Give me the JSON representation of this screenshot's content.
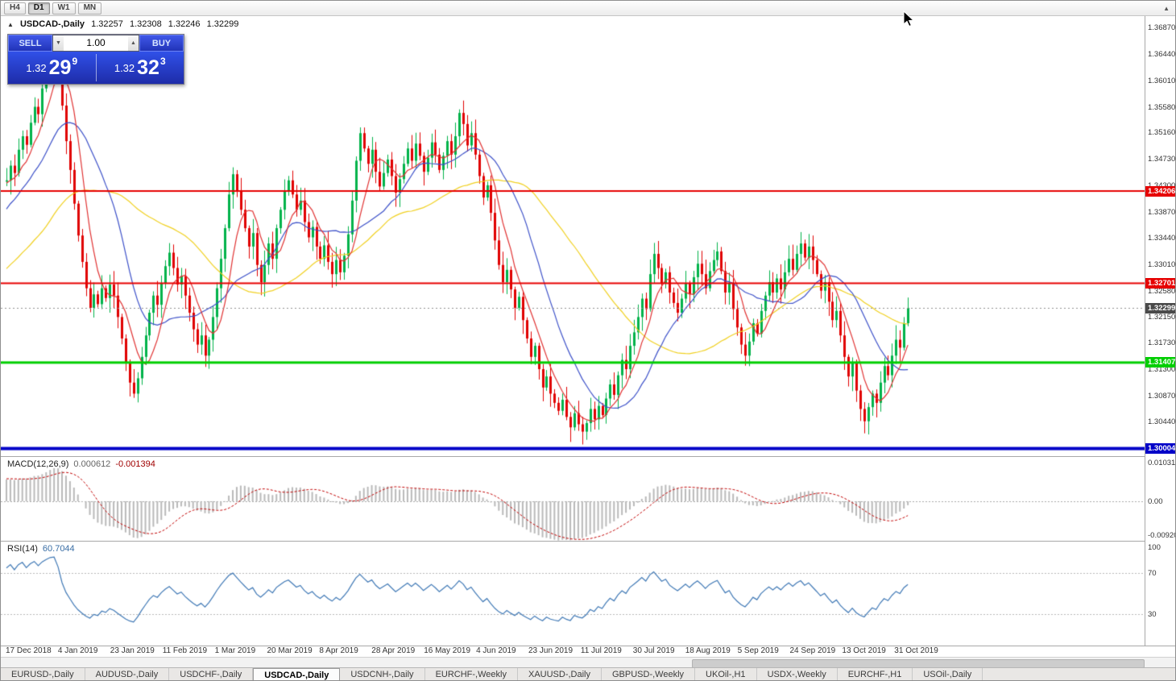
{
  "window": {
    "timeframe_buttons": [
      "H4",
      "D1",
      "W1",
      "MN"
    ],
    "active_timeframe": "D1"
  },
  "icons": {
    "collapse_panel": "▲",
    "spinner_up": "▲",
    "spinner_down": "▼",
    "corner_arrow": "▲"
  },
  "chart": {
    "title_symbol": "USDCAD-,Daily",
    "ohlc": {
      "open": "1.32257",
      "high": "1.32308",
      "low": "1.32246",
      "close": "1.32299"
    },
    "price_min": 1.2988,
    "price_max": 1.3706,
    "price_ticks": [
      "1.36870",
      "1.36440",
      "1.36010",
      "1.35580",
      "1.35160",
      "1.34730",
      "1.34300",
      "1.33870",
      "1.33440",
      "1.33010",
      "1.32580",
      "1.32150",
      "1.31730",
      "1.31300",
      "1.30870",
      "1.30440"
    ],
    "levels": [
      {
        "price": 1.34206,
        "label": "1.34206",
        "color": "#e60000",
        "width": 2
      },
      {
        "price": 1.32701,
        "label": "1.32701",
        "color": "#e60000",
        "width": 2
      },
      {
        "price": 1.31407,
        "label": "1.31407",
        "color": "#00ce00",
        "width": 3
      },
      {
        "price": 1.30004,
        "label": "1.30004",
        "color": "#0000c8",
        "width": 4
      }
    ],
    "bid_line": {
      "price": 1.32299,
      "label": "1.32299",
      "badge": "#4a4a4a"
    },
    "date_labels": [
      "17 Dec 2018",
      "4 Jan 2019",
      "23 Jan 2019",
      "11 Feb 2019",
      "1 Mar 2019",
      "20 Mar 2019",
      "8 Apr 2019",
      "28 Apr 2019",
      "16 May 2019",
      "4 Jun 2019",
      "23 Jun 2019",
      "11 Jul 2019",
      "30 Jul 2019",
      "18 Aug 2019",
      "5 Sep 2019",
      "24 Sep 2019",
      "13 Oct 2019",
      "31 Oct 2019"
    ]
  },
  "one_click": {
    "sell_label": "SELL",
    "buy_label": "BUY",
    "volume": "1.00",
    "sell_price": {
      "base": "1.32",
      "big": "29",
      "sup": "9"
    },
    "buy_price": {
      "base": "1.32",
      "big": "32",
      "sup": "3"
    }
  },
  "macd": {
    "name": "MACD(12,26,9)",
    "value_main": "0.000612",
    "value_signal": "-0.001394",
    "scale_max_label": "0.010311",
    "scale_zero_label": "0.00",
    "scale_min_label": "-0.009203",
    "range_max": 0.010311,
    "range_min": -0.009203
  },
  "rsi": {
    "name": "RSI(14)",
    "value": "60.7044",
    "levels": [
      "100",
      "70",
      "30"
    ],
    "level_values": [
      100,
      70,
      30
    ]
  },
  "tabs": {
    "active_index": 3,
    "items": [
      "EURUSD-,Daily",
      "AUDUSD-,Daily",
      "USDCHF-,Daily",
      "USDCAD-,Daily",
      "USDCNH-,Daily",
      "EURCHF-,Weekly",
      "XAUUSD-,Daily",
      "GBPUSD-,Weekly",
      "UKOil-,H1",
      "USDX-,Weekly",
      "EURCHF-,H1",
      "USOil-,Daily"
    ]
  },
  "chart_data": {
    "type": "candlestick",
    "symbol": "USDCAD",
    "timeframe": "Daily",
    "title": "USDCAD-,Daily 1.32257 1.32308 1.32246 1.32299",
    "ylim": [
      1.2988,
      1.3706
    ],
    "colors": {
      "up": "#00b24a",
      "down": "#e00000",
      "ma_fast": "#e03232",
      "ma_mid": "#3c50c8",
      "ma_slow": "#f0d020",
      "macd_hist": "#b9b9b9",
      "macd_signal": "#c00000",
      "rsi": "#3f78b5"
    },
    "ma_periods": {
      "fast": 7,
      "mid": 18,
      "slow": 45
    },
    "warmup_closes": [
      1.3062,
      1.308,
      1.3075,
      1.3098,
      1.311,
      1.3102,
      1.3128,
      1.314,
      1.3132,
      1.3155,
      1.317,
      1.3162,
      1.3185,
      1.32,
      1.3192,
      1.3215,
      1.3228,
      1.322,
      1.3242,
      1.3255,
      1.324,
      1.3222,
      1.3205,
      1.3218,
      1.3198,
      1.3182,
      1.3195,
      1.321,
      1.3228,
      1.3215,
      1.3238,
      1.3252,
      1.3245,
      1.3268,
      1.3282,
      1.3275,
      1.3298,
      1.3312,
      1.3305,
      1.3328,
      1.3342,
      1.3335,
      1.3358,
      1.3372,
      1.3365,
      1.3388,
      1.3402,
      1.3395,
      1.3418,
      1.343,
      1.3422,
      1.3438,
      1.3428,
      1.3442,
      1.3436
    ],
    "closes": [
      1.3438,
      1.3462,
      1.345,
      1.3488,
      1.351,
      1.3496,
      1.3532,
      1.3558,
      1.3546,
      1.3588,
      1.362,
      1.3652,
      1.366,
      1.3628,
      1.356,
      1.3502,
      1.3455,
      1.34,
      1.3348,
      1.3305,
      1.3262,
      1.323,
      1.3252,
      1.3236,
      1.3262,
      1.3246,
      1.3268,
      1.325,
      1.3215,
      1.318,
      1.314,
      1.3108,
      1.309,
      1.3115,
      1.315,
      1.3185,
      1.3222,
      1.325,
      1.3235,
      1.327,
      1.3298,
      1.332,
      1.3295,
      1.3268,
      1.3282,
      1.325,
      1.3222,
      1.3195,
      1.317,
      1.3185,
      1.3152,
      1.3178,
      1.3215,
      1.3262,
      1.331,
      1.336,
      1.3415,
      1.3448,
      1.342,
      1.339,
      1.336,
      1.333,
      1.3352,
      1.33,
      1.3272,
      1.33,
      1.3335,
      1.331,
      1.336,
      1.339,
      1.342,
      1.3438,
      1.3415,
      1.339,
      1.3405,
      1.337,
      1.3345,
      1.3362,
      1.333,
      1.331,
      1.3332,
      1.3305,
      1.3285,
      1.3308,
      1.3288,
      1.3315,
      1.335,
      1.3405,
      1.347,
      1.3515,
      1.349,
      1.3465,
      1.3488,
      1.3452,
      1.3428,
      1.345,
      1.3472,
      1.3445,
      1.3418,
      1.344,
      1.3465,
      1.349,
      1.347,
      1.3498,
      1.3478,
      1.3452,
      1.3475,
      1.35,
      1.348,
      1.3455,
      1.3478,
      1.3502,
      1.348,
      1.351,
      1.3548,
      1.353,
      1.3495,
      1.3515,
      1.348,
      1.3445,
      1.341,
      1.343,
      1.3385,
      1.334,
      1.33,
      1.3272,
      1.3292,
      1.326,
      1.323,
      1.3248,
      1.321,
      1.318,
      1.315,
      1.3168,
      1.313,
      1.31,
      1.3118,
      1.309,
      1.3075,
      1.3062,
      1.308,
      1.3052,
      1.3035,
      1.3058,
      1.304,
      1.3028,
      1.3042,
      1.3065,
      1.3048,
      1.307,
      1.3055,
      1.3082,
      1.3105,
      1.3088,
      1.312,
      1.3145,
      1.313,
      1.3168,
      1.319,
      1.3215,
      1.3245,
      1.3228,
      1.3285,
      1.3318,
      1.3295,
      1.327,
      1.3288,
      1.3255,
      1.3238,
      1.3222,
      1.3245,
      1.327,
      1.3252,
      1.328,
      1.3302,
      1.3285,
      1.3262,
      1.329,
      1.3308,
      1.3322,
      1.329,
      1.3255,
      1.327,
      1.3228,
      1.3198,
      1.317,
      1.3152,
      1.3175,
      1.3205,
      1.3188,
      1.3225,
      1.325,
      1.3272,
      1.3255,
      1.3278,
      1.326,
      1.3288,
      1.331,
      1.3292,
      1.3318,
      1.3335,
      1.3312,
      1.333,
      1.3308,
      1.3285,
      1.3258,
      1.3272,
      1.324,
      1.321,
      1.3225,
      1.3185,
      1.315,
      1.3118,
      1.314,
      1.3095,
      1.3065,
      1.3045,
      1.3068,
      1.309,
      1.3075,
      1.3108,
      1.3135,
      1.312,
      1.3152,
      1.3178,
      1.3165,
      1.3205,
      1.323
    ]
  }
}
